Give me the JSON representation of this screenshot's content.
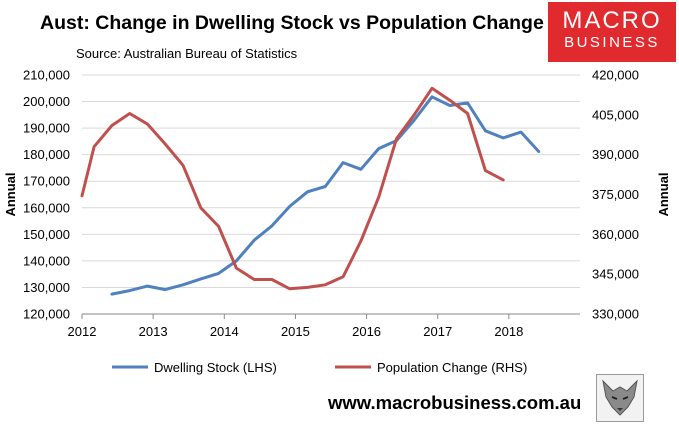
{
  "header": {
    "title": "Aust: Change in Dwelling Stock vs Population Change",
    "source": "Source: Australian Bureau of Statistics"
  },
  "logo": {
    "line1": "MACRO",
    "line2": "BUSINESS"
  },
  "footer": {
    "url": "www.macrobusiness.com.au",
    "icon": "wolf-icon"
  },
  "colors": {
    "dwelling": "#4e81bd",
    "population": "#c0504d",
    "grid": "#d9d9d9",
    "logo_bg": "#e02a2d"
  },
  "chart_data": {
    "type": "line",
    "title": "Aust: Change in Dwelling Stock vs Population Change",
    "xlabel": "",
    "ylabel": "Annual",
    "y2label": "Annual",
    "xlim": [
      2012,
      2019
    ],
    "ylim": [
      120000,
      210000
    ],
    "y2lim": [
      330000,
      420000
    ],
    "x_ticks": [
      2012,
      2013,
      2014,
      2015,
      2016,
      2017,
      2018
    ],
    "y_ticks": [
      "120,000",
      "130,000",
      "140,000",
      "150,000",
      "160,000",
      "170,000",
      "180,000",
      "190,000",
      "200,000",
      "210,000"
    ],
    "y_tick_values": [
      120000,
      130000,
      140000,
      150000,
      160000,
      170000,
      180000,
      190000,
      200000,
      210000
    ],
    "y2_ticks": [
      "330,000",
      "345,000",
      "360,000",
      "375,000",
      "390,000",
      "405,000",
      "420,000"
    ],
    "y2_tick_values": [
      330000,
      345000,
      360000,
      375000,
      390000,
      405000,
      420000
    ],
    "legend_position": "bottom",
    "series": [
      {
        "name": "Dwelling Stock (LHS)",
        "axis": "left",
        "x": [
          2012.42,
          2012.67,
          2012.92,
          2013.17,
          2013.42,
          2013.67,
          2013.92,
          2014.17,
          2014.42,
          2014.67,
          2014.92,
          2015.17,
          2015.42,
          2015.67,
          2015.92,
          2016.17,
          2016.42,
          2016.67,
          2016.92,
          2017.17,
          2017.42,
          2017.67,
          2017.92,
          2018.17,
          2018.42
        ],
        "values": [
          127500,
          128800,
          130500,
          129200,
          131000,
          133200,
          135300,
          140000,
          147800,
          153200,
          160500,
          166000,
          168000,
          177000,
          174500,
          182300,
          185300,
          193000,
          201800,
          198500,
          199500,
          189000,
          186300,
          188500,
          181200
        ]
      },
      {
        "name": "Population Change (RHS)",
        "axis": "right",
        "x": [
          2012.0,
          2012.17,
          2012.42,
          2012.67,
          2012.92,
          2013.17,
          2013.42,
          2013.67,
          2013.92,
          2014.17,
          2014.42,
          2014.67,
          2014.92,
          2015.17,
          2015.42,
          2015.67,
          2015.92,
          2016.17,
          2016.42,
          2016.67,
          2016.92,
          2017.17,
          2017.42,
          2017.67,
          2017.92
        ],
        "values": [
          374500,
          393000,
          401000,
          405500,
          401500,
          394000,
          386000,
          370000,
          363000,
          347300,
          343000,
          343000,
          339500,
          340000,
          341000,
          344000,
          357500,
          374000,
          396000,
          405000,
          415000,
          410500,
          405500,
          384000,
          380500
        ]
      }
    ]
  }
}
